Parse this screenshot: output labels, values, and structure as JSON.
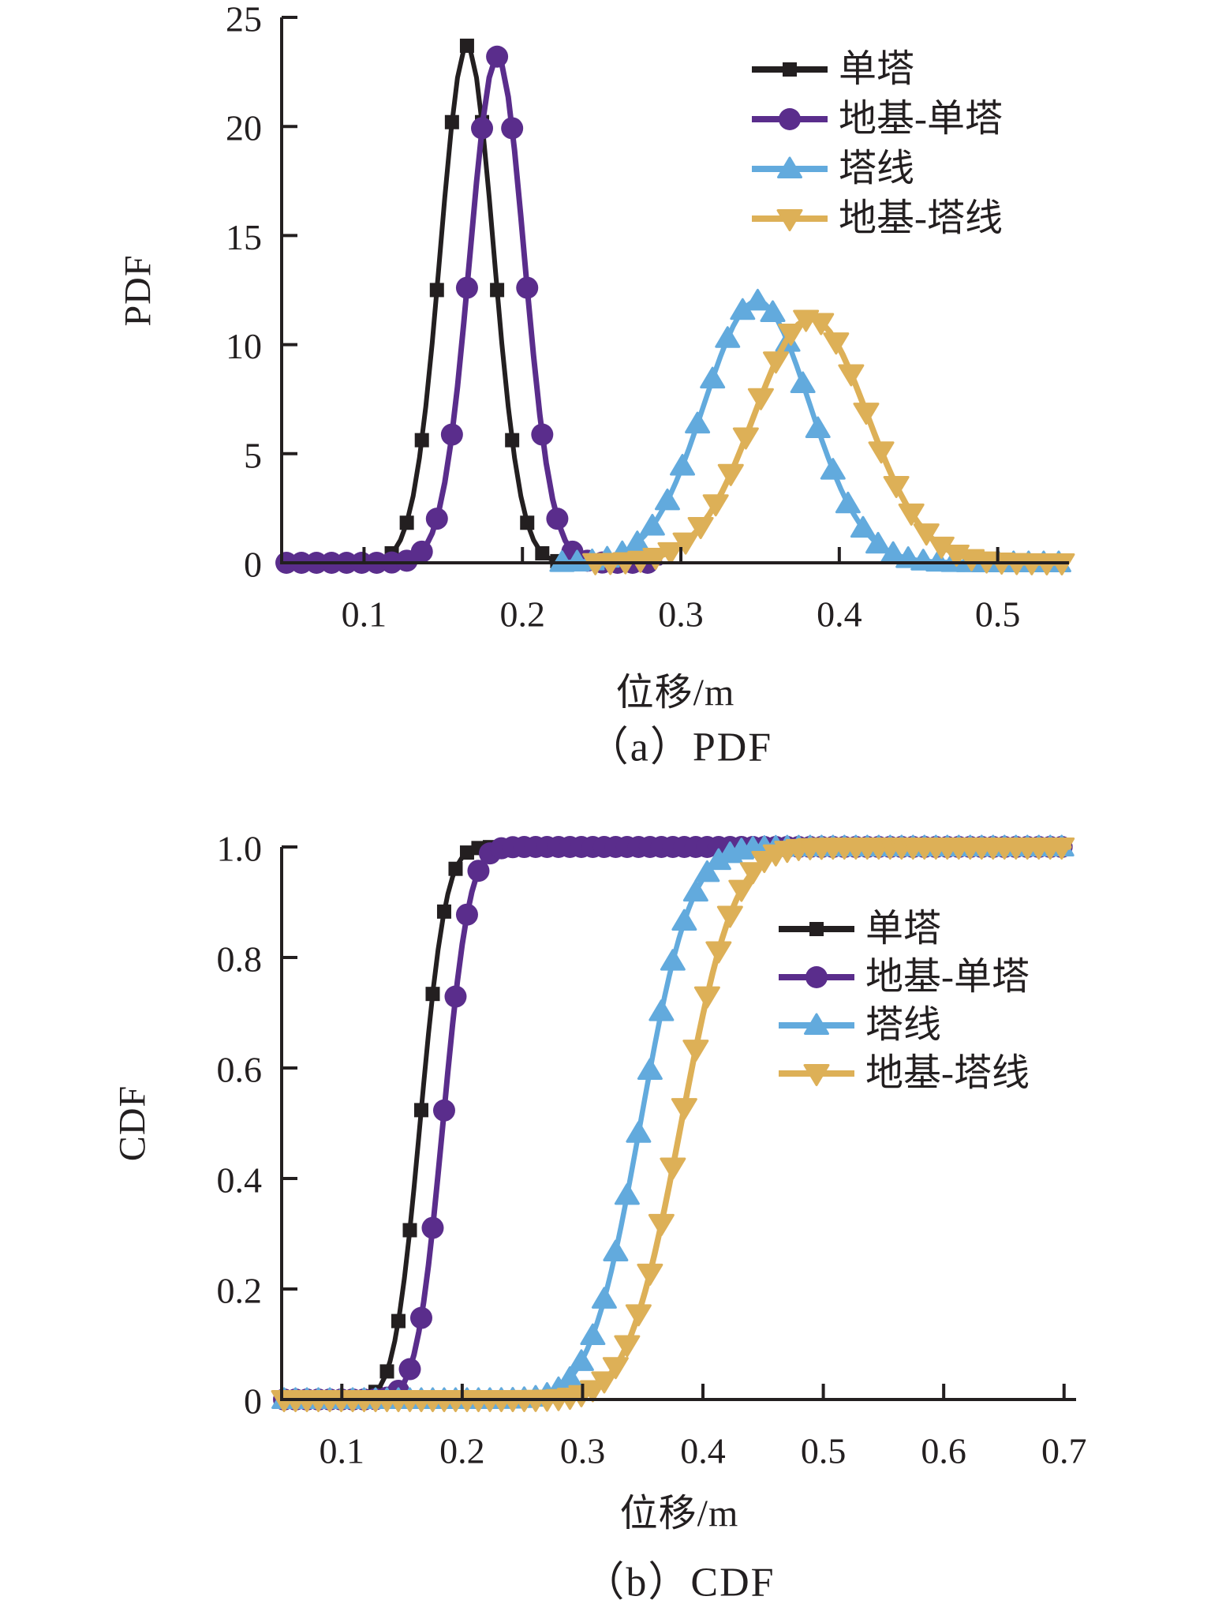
{
  "figure": {
    "background": "#ffffff",
    "text_color": "#231f20"
  },
  "chart_data": [
    {
      "id": "pdf",
      "type": "line",
      "title": "（a）PDF",
      "xlabel": "位移/m",
      "ylabel": "PDF",
      "xlim": [
        0.048,
        0.545
      ],
      "ylim": [
        0,
        25
      ],
      "grid": false,
      "legend_position": "top-right",
      "xticks": {
        "values": [
          0.1,
          0.2,
          0.3,
          0.4,
          0.5
        ],
        "labels": [
          "0.1",
          "0.2",
          "0.3",
          "0.4",
          "0.5"
        ]
      },
      "yticks": {
        "values": [
          25,
          20,
          15,
          10,
          5,
          0
        ],
        "labels": [
          "25",
          "20",
          "15",
          "10",
          "5",
          "0"
        ]
      },
      "series": [
        {
          "name": "单塔",
          "color": "#231f20",
          "marker": "square",
          "curve": "gaussian-pdf",
          "mean": 0.165,
          "sigma": 0.0168,
          "peak": 23.7,
          "x_start": 0.051,
          "x_end": 0.236
        },
        {
          "name": "地基-单塔",
          "color": "#5a2d8c",
          "marker": "circle",
          "curve": "gaussian-pdf",
          "mean": 0.184,
          "sigma": 0.0172,
          "peak": 23.2,
          "x_start": 0.051,
          "x_end": 0.288
        },
        {
          "name": "塔线",
          "color": "#62aadd",
          "marker": "triangle-up",
          "curve": "gaussian-pdf",
          "mean": 0.348,
          "sigma": 0.0333,
          "peak": 12.0,
          "x_start": 0.225,
          "x_end": 0.543
        },
        {
          "name": "地基-塔线",
          "color": "#ddb057",
          "marker": "triangle-down",
          "curve": "gaussian-pdf",
          "mean": 0.382,
          "sigma": 0.0356,
          "peak": 11.2,
          "x_start": 0.246,
          "x_end": 0.543
        }
      ]
    },
    {
      "id": "cdf",
      "type": "line",
      "title": "（b）CDF",
      "xlabel": "位移/m",
      "ylabel": "CDF",
      "xlim": [
        0.05,
        0.71
      ],
      "ylim": [
        0,
        1.0
      ],
      "grid": false,
      "legend_position": "right-middle",
      "xticks": {
        "values": [
          0.1,
          0.2,
          0.3,
          0.4,
          0.5,
          0.6,
          0.7
        ],
        "labels": [
          "0.1",
          "0.2",
          "0.3",
          "0.4",
          "0.5",
          "0.6",
          "0.7"
        ]
      },
      "yticks": {
        "values": [
          1.0,
          0.8,
          0.6,
          0.4,
          0.2,
          0
        ],
        "labels": [
          "1.0",
          "0.8",
          "0.6",
          "0.4",
          "0.2",
          "0"
        ]
      },
      "series": [
        {
          "name": "单塔",
          "color": "#231f20",
          "marker": "square",
          "curve": "gaussian-cdf",
          "mean": 0.165,
          "sigma": 0.0168,
          "x_start": 0.052,
          "x_end": 0.706
        },
        {
          "name": "地基-单塔",
          "color": "#5a2d8c",
          "marker": "circle",
          "curve": "gaussian-cdf",
          "mean": 0.184,
          "sigma": 0.0172,
          "x_start": 0.052,
          "x_end": 0.706
        },
        {
          "name": "塔线",
          "color": "#62aadd",
          "marker": "triangle-up",
          "curve": "gaussian-cdf",
          "mean": 0.348,
          "sigma": 0.033,
          "x_start": 0.052,
          "x_end": 0.706
        },
        {
          "name": "地基-塔线",
          "color": "#ddb057",
          "marker": "triangle-down",
          "curve": "gaussian-cdf",
          "mean": 0.382,
          "sigma": 0.035,
          "x_start": 0.052,
          "x_end": 0.706
        }
      ]
    }
  ]
}
